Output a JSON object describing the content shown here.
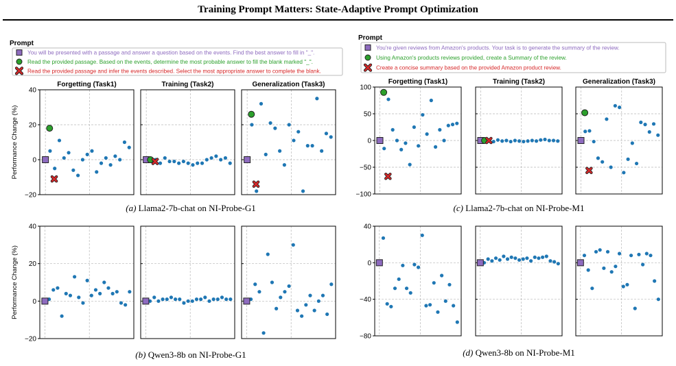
{
  "header": {
    "title": "Training Prompt Matters: State-Adaptive Prompt Optimization"
  },
  "colors": {
    "baseline": "#8e6bbf",
    "best": "#2ca02c",
    "worst": "#d62728",
    "dots": "#1f77b4"
  },
  "legends": [
    {
      "title": "Prompt",
      "entries": [
        {
          "marker": "square",
          "color": "#8e6bbf",
          "text": "You will be presented with a passage and answer a question based on the events. Find the best answer to fill in \"_\"."
        },
        {
          "marker": "circle",
          "color": "#2ca02c",
          "text": "Read the provided passage. Based on the events, determine the most probable answer to fill the blank marked \"_\"."
        },
        {
          "marker": "cross",
          "color": "#d62728",
          "text": "Read the provided passage and infer the events described. Select the most appropriate answer to complete the blank."
        }
      ]
    },
    {
      "title": "Prompt",
      "entries": [
        {
          "marker": "square",
          "color": "#8e6bbf",
          "text": "You're given reviews from Amazon's products. Your task is to generate the summary of the review."
        },
        {
          "marker": "circle",
          "color": "#2ca02c",
          "text": "Using Amazon's products reviews provided, create a Summary of the review."
        },
        {
          "marker": "cross",
          "color": "#d62728",
          "text": "Create a concise summary based on the provided Amazon product review."
        }
      ]
    }
  ],
  "chart_data": [
    {
      "type": "scatter",
      "caption_tag": "(a)",
      "caption": " Llama2-7b-chat on NI-Probe-G1",
      "ylabel": "Performance Change (%)",
      "ylim": [
        -20,
        40
      ],
      "yticks": [
        -20,
        0,
        20,
        40
      ],
      "grid": true,
      "panels": [
        {
          "title": "Forgetting (Task1)",
          "baseline": 0,
          "best": 18,
          "worst": -11,
          "x": [
            1,
            2,
            3,
            4,
            5,
            6,
            7,
            8,
            9,
            10,
            11,
            12,
            13,
            14,
            15,
            16,
            17,
            18
          ],
          "values": [
            5,
            -5,
            11,
            1,
            4,
            -6,
            -9,
            0,
            3,
            5,
            -7,
            -2,
            1,
            -3,
            2,
            0,
            10,
            7
          ]
        },
        {
          "title": "Training (Task2)",
          "baseline": 0,
          "best": 0,
          "worst": -1,
          "x": [
            1,
            2,
            3,
            4,
            5,
            6,
            7,
            8,
            9,
            10,
            11,
            12,
            13,
            14,
            15,
            16,
            17,
            18
          ],
          "values": [
            -1,
            0,
            -2,
            1,
            -1,
            -1,
            -2,
            -1,
            -2,
            -3,
            -2,
            -2,
            0,
            1,
            2,
            0,
            1,
            -2
          ]
        },
        {
          "title": "Generalization (Task3)",
          "baseline": 0,
          "best": 26,
          "worst": -14,
          "x": [
            1,
            2,
            3,
            4,
            5,
            6,
            7,
            8,
            9,
            10,
            11,
            12,
            13,
            14,
            15,
            16,
            17,
            18
          ],
          "values": [
            20,
            -18,
            32,
            3,
            21,
            18,
            5,
            -3,
            20,
            11,
            16,
            -18,
            8,
            8,
            35,
            5,
            15,
            13
          ]
        }
      ]
    },
    {
      "type": "scatter",
      "caption_tag": "(b)",
      "caption": " Qwen3-8b on NI-Probe-G1",
      "ylabel": "Performance Change (%)",
      "ylim": [
        -20,
        40
      ],
      "yticks": [
        -20,
        0,
        20,
        40
      ],
      "grid": true,
      "panels": [
        {
          "title": "",
          "baseline": 0,
          "x": [
            1,
            2,
            3,
            4,
            5,
            6,
            7,
            8,
            9,
            10,
            11,
            12,
            13,
            14,
            15,
            16,
            17,
            18,
            19,
            20
          ],
          "values": [
            1,
            6,
            7,
            -8,
            4,
            3,
            13,
            2,
            -1,
            11,
            3,
            6,
            4,
            10,
            7,
            4,
            5,
            -1,
            -2,
            5
          ]
        },
        {
          "title": "",
          "baseline": 0,
          "x": [
            1,
            2,
            3,
            4,
            5,
            6,
            7,
            8,
            9,
            10,
            11,
            12,
            13,
            14,
            15,
            16,
            17,
            18,
            19,
            20
          ],
          "values": [
            0,
            2,
            0,
            1,
            1,
            2,
            1,
            1,
            -1,
            0,
            0,
            1,
            1,
            2,
            0,
            1,
            1,
            2,
            1,
            1
          ]
        },
        {
          "title": "",
          "baseline": 0,
          "x": [
            1,
            2,
            3,
            4,
            5,
            6,
            7,
            8,
            9,
            10,
            11,
            12,
            13,
            14,
            15,
            16,
            17,
            18,
            19,
            20
          ],
          "values": [
            1,
            9,
            5,
            -17,
            25,
            10,
            -4,
            2,
            5,
            8,
            30,
            -5,
            -8,
            -2,
            3,
            -5,
            0,
            3,
            -7,
            9
          ]
        }
      ]
    },
    {
      "type": "scatter",
      "caption_tag": "(c)",
      "caption": " Llama2-7b-chat on NI-Probe-M1",
      "ylabel": "",
      "ylim": [
        -100,
        100
      ],
      "yticks": [
        -100,
        -50,
        0,
        50,
        100
      ],
      "grid": true,
      "panels": [
        {
          "title": "Forgetting (Task1)",
          "baseline": 0,
          "best": 90,
          "worst": -67,
          "x": [
            1,
            2,
            3,
            4,
            5,
            6,
            7,
            8,
            9,
            10,
            11,
            12,
            13,
            14,
            15,
            16,
            17,
            18
          ],
          "values": [
            -15,
            77,
            20,
            0,
            -17,
            -5,
            -45,
            25,
            -10,
            48,
            12,
            75,
            -12,
            20,
            0,
            28,
            30,
            32
          ]
        },
        {
          "title": "Training (Task2)",
          "baseline": 0,
          "best": 0,
          "worst": 0,
          "x": [
            1,
            2,
            3,
            4,
            5,
            6,
            7,
            8,
            9,
            10,
            11,
            12,
            13,
            14,
            15,
            16,
            17,
            18
          ],
          "values": [
            -1,
            0,
            -2,
            1,
            -1,
            0,
            -2,
            0,
            -1,
            -2,
            -1,
            0,
            -1,
            1,
            2,
            0,
            0,
            -1
          ]
        },
        {
          "title": "Generalization (Task3)",
          "baseline": 0,
          "best": 52,
          "worst": -56,
          "x": [
            1,
            2,
            3,
            4,
            5,
            6,
            7,
            8,
            9,
            10,
            11,
            12,
            13,
            14,
            15,
            16,
            17,
            18
          ],
          "values": [
            17,
            18,
            -2,
            -33,
            -40,
            40,
            -50,
            65,
            62,
            -60,
            -35,
            -5,
            -43,
            34,
            30,
            16,
            31,
            10
          ]
        }
      ]
    },
    {
      "type": "scatter",
      "caption_tag": "(d)",
      "caption": " Qwen3-8b on NI-Probe-M1",
      "ylabel": "",
      "ylim": [
        -80,
        40
      ],
      "yticks": [
        -80,
        -40,
        0,
        40
      ],
      "grid": true,
      "panels": [
        {
          "title": "",
          "baseline": 0,
          "x": [
            1,
            2,
            3,
            4,
            5,
            6,
            7,
            8,
            9,
            10,
            11,
            12,
            13,
            14,
            15,
            16,
            17,
            18,
            19,
            20
          ],
          "values": [
            27,
            -45,
            -48,
            -28,
            -18,
            -3,
            -28,
            -33,
            -2,
            -5,
            30,
            -47,
            -46,
            -22,
            -54,
            -14,
            -42,
            -24,
            -47,
            -65
          ]
        },
        {
          "title": "",
          "baseline": 0,
          "x": [
            1,
            2,
            3,
            4,
            5,
            6,
            7,
            8,
            9,
            10,
            11,
            12,
            13,
            14,
            15,
            16,
            17,
            18,
            19,
            20
          ],
          "values": [
            0,
            4,
            2,
            5,
            3,
            7,
            4,
            6,
            5,
            3,
            4,
            5,
            2,
            6,
            5,
            6,
            7,
            2,
            1,
            -1
          ]
        },
        {
          "title": "",
          "baseline": 0,
          "x": [
            1,
            2,
            3,
            4,
            5,
            6,
            7,
            8,
            9,
            10,
            11,
            12,
            13,
            14,
            15,
            16,
            17,
            18,
            19,
            20
          ],
          "values": [
            8,
            -8,
            -28,
            12,
            14,
            -6,
            12,
            -10,
            -4,
            10,
            -26,
            -24,
            8,
            -50,
            9,
            -2,
            10,
            8,
            -20,
            -40
          ]
        }
      ]
    }
  ]
}
